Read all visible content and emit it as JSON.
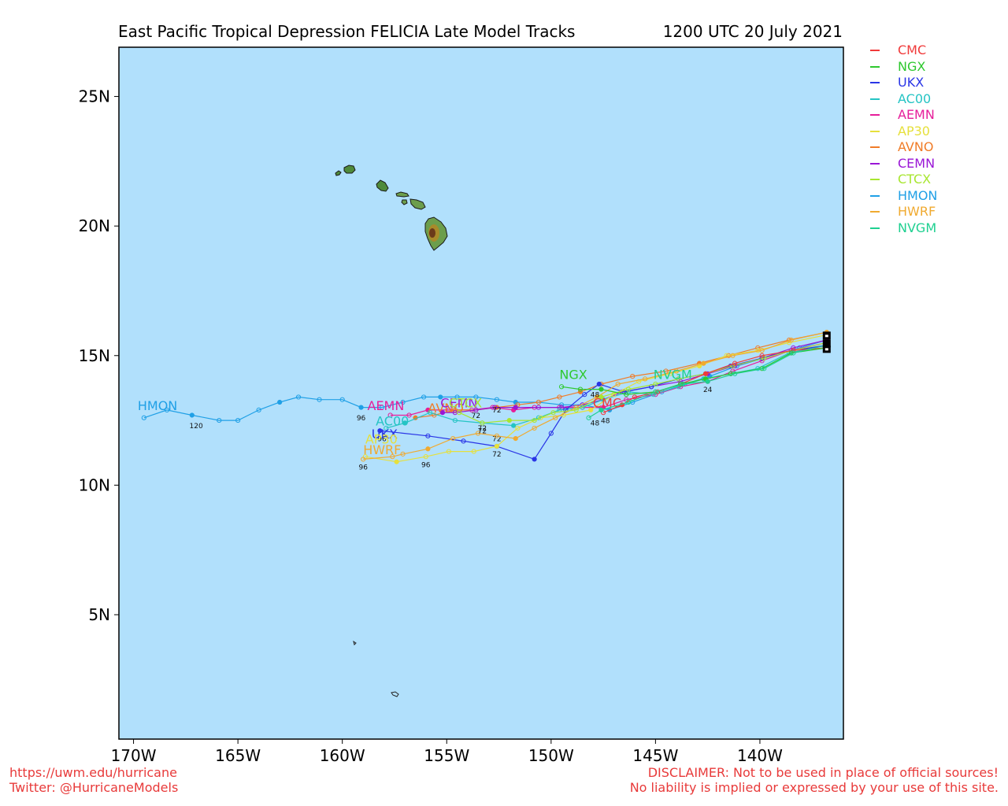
{
  "header": {
    "title": "East Pacific Tropical Depression FELICIA Late Model Tracks",
    "datetime": "1200 UTC 20 July 2021"
  },
  "footer": {
    "url": "https://uwm.edu/hurricane",
    "twitter": "Twitter: @HurricaneModels",
    "disclaimer_line1": "DISCLAIMER: Not to be used in place of official sources!",
    "disclaimer_line2": "No liability is implied or expressed by your use of this site."
  },
  "map": {
    "ocean_color": "#b1e0fc",
    "lon_range": [
      -170.7,
      -136.0
    ],
    "lat_range": [
      0.2,
      26.9
    ],
    "x_ticks": [
      {
        "lon": -170,
        "label": "170W"
      },
      {
        "lon": -165,
        "label": "165W"
      },
      {
        "lon": -160,
        "label": "160W"
      },
      {
        "lon": -155,
        "label": "155W"
      },
      {
        "lon": -150,
        "label": "150W"
      },
      {
        "lon": -145,
        "label": "145W"
      },
      {
        "lon": -140,
        "label": "140W"
      }
    ],
    "y_ticks": [
      {
        "lat": 5,
        "label": "5N"
      },
      {
        "lat": 10,
        "label": "10N"
      },
      {
        "lat": 15,
        "label": "15N"
      },
      {
        "lat": 20,
        "label": "20N"
      },
      {
        "lat": 25,
        "label": "25N"
      }
    ]
  },
  "legend": [
    {
      "name": "CMC",
      "color": "#f03a3a"
    },
    {
      "name": "NGX",
      "color": "#2ec82e"
    },
    {
      "name": "UKX",
      "color": "#2a35e6"
    },
    {
      "name": "AC00",
      "color": "#25c4c4"
    },
    {
      "name": "AEMN",
      "color": "#e61e9a"
    },
    {
      "name": "AP30",
      "color": "#e6e03c"
    },
    {
      "name": "AVNO",
      "color": "#f07c28"
    },
    {
      "name": "CEMN",
      "color": "#9a16d6"
    },
    {
      "name": "CTCX",
      "color": "#a8e630"
    },
    {
      "name": "HMON",
      "color": "#20a0e6"
    },
    {
      "name": "HWRF",
      "color": "#f0aa30"
    },
    {
      "name": "NVGM",
      "color": "#1ed090"
    }
  ],
  "tracks": [
    {
      "model": "HMON",
      "color": "#20a0e6",
      "label_pos": [
        -169.8,
        12.9
      ],
      "points": [
        [
          -136.8,
          15.6
        ],
        [
          -138.1,
          15.3
        ],
        [
          -139.8,
          14.9
        ],
        [
          -141.1,
          14.6
        ],
        [
          -142.4,
          14.2
        ],
        [
          -143.6,
          13.9
        ],
        [
          -144.7,
          13.6
        ],
        [
          -146.1,
          13.2
        ],
        [
          -147.2,
          12.9
        ],
        [
          -148.5,
          13.1
        ],
        [
          -149.5,
          13.1
        ],
        [
          -150.6,
          13.2
        ],
        [
          -151.7,
          13.2
        ],
        [
          -152.6,
          13.3
        ],
        [
          -153.6,
          13.4
        ],
        [
          -154.5,
          13.4
        ],
        [
          -155.3,
          13.4
        ],
        [
          -156.1,
          13.4
        ],
        [
          -157.1,
          13.2
        ],
        [
          -158.1,
          13.0
        ],
        [
          -159.1,
          13.0
        ],
        [
          -160.0,
          13.3
        ],
        [
          -161.1,
          13.3
        ],
        [
          -162.1,
          13.4
        ],
        [
          -163.0,
          13.2
        ],
        [
          -164.0,
          12.9
        ],
        [
          -165.0,
          12.5
        ],
        [
          -165.9,
          12.5
        ],
        [
          -167.2,
          12.7
        ],
        [
          -168.4,
          12.9
        ],
        [
          -169.5,
          12.6
        ]
      ],
      "hour_labels": [
        {
          "text": "120",
          "lon": -167.0,
          "lat": 12.2
        },
        {
          "text": "96",
          "lon": -159.1,
          "lat": 12.5
        }
      ]
    },
    {
      "model": "AEMN",
      "color": "#e61e9a",
      "label_pos": [
        -158.8,
        12.9
      ],
      "points": [
        [
          -136.8,
          15.5
        ],
        [
          -138.5,
          15.2
        ],
        [
          -139.9,
          14.8
        ],
        [
          -141.3,
          14.4
        ],
        [
          -142.5,
          14.0
        ],
        [
          -143.8,
          13.8
        ],
        [
          -145.0,
          13.5
        ],
        [
          -146.4,
          13.3
        ],
        [
          -147.5,
          13.0
        ],
        [
          -148.5,
          13.0
        ],
        [
          -149.6,
          13.0
        ],
        [
          -150.8,
          13.0
        ],
        [
          -151.8,
          12.9
        ],
        [
          -152.8,
          13.0
        ],
        [
          -153.8,
          12.9
        ],
        [
          -154.9,
          12.9
        ],
        [
          -155.9,
          12.9
        ],
        [
          -156.8,
          12.7
        ],
        [
          -157.7,
          12.7
        ]
      ],
      "hour_labels": []
    },
    {
      "model": "AVNO",
      "color": "#f07c28",
      "label_pos": [
        -155.9,
        12.8
      ],
      "points": [
        [
          -136.8,
          15.9
        ],
        [
          -138.6,
          15.6
        ],
        [
          -140.1,
          15.3
        ],
        [
          -141.5,
          15.0
        ],
        [
          -142.9,
          14.7
        ],
        [
          -144.5,
          14.4
        ],
        [
          -146.1,
          14.2
        ],
        [
          -147.6,
          13.9
        ],
        [
          -148.6,
          13.6
        ],
        [
          -149.6,
          13.4
        ],
        [
          -150.6,
          13.2
        ],
        [
          -151.6,
          13.1
        ],
        [
          -152.6,
          13.0
        ],
        [
          -153.6,
          12.9
        ],
        [
          -154.6,
          12.9
        ],
        [
          -155.6,
          12.7
        ],
        [
          -156.5,
          12.6
        ]
      ],
      "hour_labels": []
    },
    {
      "model": "CEMN",
      "color": "#9a16d6",
      "label_pos": [
        -155.3,
        13.0
      ],
      "points": [
        [
          -136.8,
          15.6
        ],
        [
          -138.4,
          15.3
        ],
        [
          -139.9,
          14.9
        ],
        [
          -141.2,
          14.6
        ],
        [
          -142.5,
          14.3
        ],
        [
          -143.8,
          14.0
        ],
        [
          -145.2,
          13.8
        ],
        [
          -146.6,
          13.6
        ],
        [
          -147.5,
          13.3
        ],
        [
          -148.5,
          13.1
        ],
        [
          -149.5,
          13.0
        ],
        [
          -150.6,
          13.0
        ],
        [
          -151.7,
          13.0
        ],
        [
          -152.7,
          13.0
        ],
        [
          -153.6,
          12.9
        ],
        [
          -154.6,
          12.8
        ],
        [
          -155.2,
          12.8
        ]
      ],
      "hour_labels": [
        {
          "text": "72",
          "lon": -152.6,
          "lat": 12.8
        }
      ]
    },
    {
      "model": "AC00",
      "color": "#25c4c4",
      "label_pos": [
        -158.4,
        12.3
      ],
      "points": [
        [
          -136.8,
          15.4
        ],
        [
          -138.6,
          15.1
        ],
        [
          -140.1,
          14.5
        ],
        [
          -141.4,
          14.3
        ],
        [
          -142.7,
          14.1
        ],
        [
          -143.9,
          13.8
        ],
        [
          -145.1,
          13.5
        ],
        [
          -146.3,
          13.6
        ],
        [
          -147.5,
          13.3
        ],
        [
          -148.5,
          13.0
        ],
        [
          -149.6,
          12.9
        ],
        [
          -150.6,
          12.6
        ],
        [
          -151.8,
          12.3
        ],
        [
          -153.3,
          12.4
        ],
        [
          -154.6,
          12.5
        ],
        [
          -155.8,
          12.8
        ],
        [
          -157.0,
          12.4
        ],
        [
          -157.9,
          12.2
        ]
      ],
      "hour_labels": [
        {
          "text": "72",
          "lon": -153.3,
          "lat": 12.1
        }
      ]
    },
    {
      "model": "UKX",
      "color": "#2a35e6",
      "label_pos": [
        -158.6,
        11.8
      ],
      "points": [
        [
          -136.8,
          15.4
        ],
        [
          -138.4,
          15.2
        ],
        [
          -139.9,
          14.9
        ],
        [
          -141.4,
          14.6
        ],
        [
          -142.6,
          14.3
        ],
        [
          -143.9,
          14.1
        ],
        [
          -145.2,
          13.8
        ],
        [
          -146.5,
          13.6
        ],
        [
          -147.7,
          13.9
        ],
        [
          -148.4,
          13.5
        ],
        [
          -149.3,
          12.9
        ],
        [
          -150.0,
          12.0
        ],
        [
          -150.8,
          11.0
        ],
        [
          -152.6,
          11.5
        ],
        [
          -154.2,
          11.7
        ],
        [
          -155.9,
          11.9
        ],
        [
          -158.2,
          12.1
        ]
      ],
      "hour_labels": [
        {
          "text": "72",
          "lon": -152.6,
          "lat": 11.7
        },
        {
          "text": "96",
          "lon": -158.1,
          "lat": 11.7
        }
      ]
    },
    {
      "model": "AP30",
      "color": "#e6e03c",
      "label_pos": [
        -158.9,
        11.6
      ],
      "points": [
        [
          -136.8,
          15.8
        ],
        [
          -138.6,
          15.5
        ],
        [
          -140.1,
          15.2
        ],
        [
          -141.6,
          15.0
        ],
        [
          -142.9,
          14.6
        ],
        [
          -144.3,
          14.3
        ],
        [
          -145.8,
          14.0
        ],
        [
          -147.0,
          13.5
        ],
        [
          -148.1,
          12.9
        ],
        [
          -149.4,
          12.7
        ],
        [
          -150.5,
          12.6
        ],
        [
          -151.6,
          12.2
        ],
        [
          -152.6,
          11.5
        ],
        [
          -153.7,
          11.3
        ],
        [
          -154.9,
          11.3
        ],
        [
          -156.0,
          11.1
        ],
        [
          -157.4,
          10.9
        ],
        [
          -158.9,
          11.1
        ]
      ],
      "hour_labels": [
        {
          "text": "72",
          "lon": -152.6,
          "lat": 11.1
        },
        {
          "text": "96",
          "lon": -156.0,
          "lat": 10.7
        }
      ]
    },
    {
      "model": "HWRF",
      "color": "#f0aa30",
      "label_pos": [
        -159.0,
        11.2
      ],
      "points": [
        [
          -136.8,
          15.9
        ],
        [
          -138.5,
          15.6
        ],
        [
          -139.9,
          15.2
        ],
        [
          -141.3,
          15.0
        ],
        [
          -142.7,
          14.7
        ],
        [
          -144.0,
          14.4
        ],
        [
          -145.5,
          14.1
        ],
        [
          -146.8,
          13.9
        ],
        [
          -147.8,
          13.4
        ],
        [
          -148.8,
          13.0
        ],
        [
          -149.8,
          12.6
        ],
        [
          -150.8,
          12.2
        ],
        [
          -151.7,
          11.8
        ],
        [
          -152.6,
          11.9
        ],
        [
          -153.5,
          12.0
        ],
        [
          -154.7,
          11.8
        ],
        [
          -155.9,
          11.4
        ],
        [
          -157.1,
          11.2
        ],
        [
          -157.6,
          11.1
        ],
        [
          -159.0,
          11.0
        ]
      ],
      "hour_labels": [
        {
          "text": "72",
          "lon": -153.3,
          "lat": 12.0
        },
        {
          "text": "96",
          "lon": -159.0,
          "lat": 10.6
        }
      ]
    },
    {
      "model": "CTCX",
      "color": "#a8e630",
      "label_pos": [
        -154.9,
        13.0
      ],
      "points": [
        [
          -136.8,
          15.5
        ],
        [
          -138.4,
          15.2
        ],
        [
          -139.8,
          14.9
        ],
        [
          -141.3,
          14.6
        ],
        [
          -142.6,
          14.3
        ],
        [
          -143.9,
          14.1
        ],
        [
          -145.0,
          13.9
        ],
        [
          -146.3,
          13.7
        ],
        [
          -147.6,
          13.4
        ],
        [
          -148.8,
          12.9
        ],
        [
          -149.9,
          12.8
        ],
        [
          -150.8,
          12.5
        ],
        [
          -152.0,
          12.5
        ],
        [
          -153.3,
          12.4
        ],
        [
          -154.4,
          12.8
        ]
      ],
      "hour_labels": [
        {
          "text": "72",
          "lon": -153.6,
          "lat": 12.6
        }
      ]
    },
    {
      "model": "CMC",
      "color": "#f03a3a",
      "label_pos": [
        -148.0,
        13.0
      ],
      "points": [
        [
          -136.8,
          15.3
        ],
        [
          -138.4,
          15.2
        ],
        [
          -139.9,
          15.0
        ],
        [
          -141.2,
          14.7
        ],
        [
          -142.6,
          14.3
        ],
        [
          -143.8,
          13.9
        ],
        [
          -144.9,
          13.6
        ],
        [
          -146.0,
          13.4
        ],
        [
          -146.6,
          13.1
        ],
        [
          -147.5,
          12.8
        ]
      ],
      "hour_labels": [
        {
          "text": "48",
          "lon": -147.4,
          "lat": 12.4
        }
      ]
    },
    {
      "model": "NGX",
      "color": "#2ec82e",
      "label_pos": [
        -149.6,
        14.1
      ],
      "points": [
        [
          -136.8,
          15.3
        ],
        [
          -138.5,
          15.1
        ],
        [
          -139.9,
          14.5
        ],
        [
          -141.4,
          14.3
        ],
        [
          -142.6,
          14.1
        ],
        [
          -143.8,
          13.9
        ],
        [
          -145.0,
          13.6
        ],
        [
          -146.4,
          13.5
        ],
        [
          -147.6,
          13.7
        ],
        [
          -148.6,
          13.7
        ],
        [
          -149.5,
          13.8
        ]
      ],
      "hour_labels": [
        {
          "text": "48",
          "lon": -147.9,
          "lat": 13.4
        }
      ]
    },
    {
      "model": "NVGM",
      "color": "#1ed090",
      "label_pos": [
        -145.1,
        14.1
      ],
      "points": [
        [
          -136.8,
          15.4
        ],
        [
          -138.4,
          15.1
        ],
        [
          -139.8,
          14.5
        ],
        [
          -141.2,
          14.3
        ],
        [
          -142.5,
          14.0
        ],
        [
          -143.7,
          13.9
        ],
        [
          -145.0,
          13.6
        ],
        [
          -146.3,
          13.2
        ],
        [
          -147.6,
          12.9
        ],
        [
          -148.2,
          12.6
        ]
      ],
      "hour_labels": [
        {
          "text": "24",
          "lon": -142.5,
          "lat": 13.6
        },
        {
          "text": "48",
          "lon": -147.9,
          "lat": 12.3
        }
      ]
    }
  ],
  "storm_start": {
    "lon": -136.8,
    "lat": 15.5
  }
}
